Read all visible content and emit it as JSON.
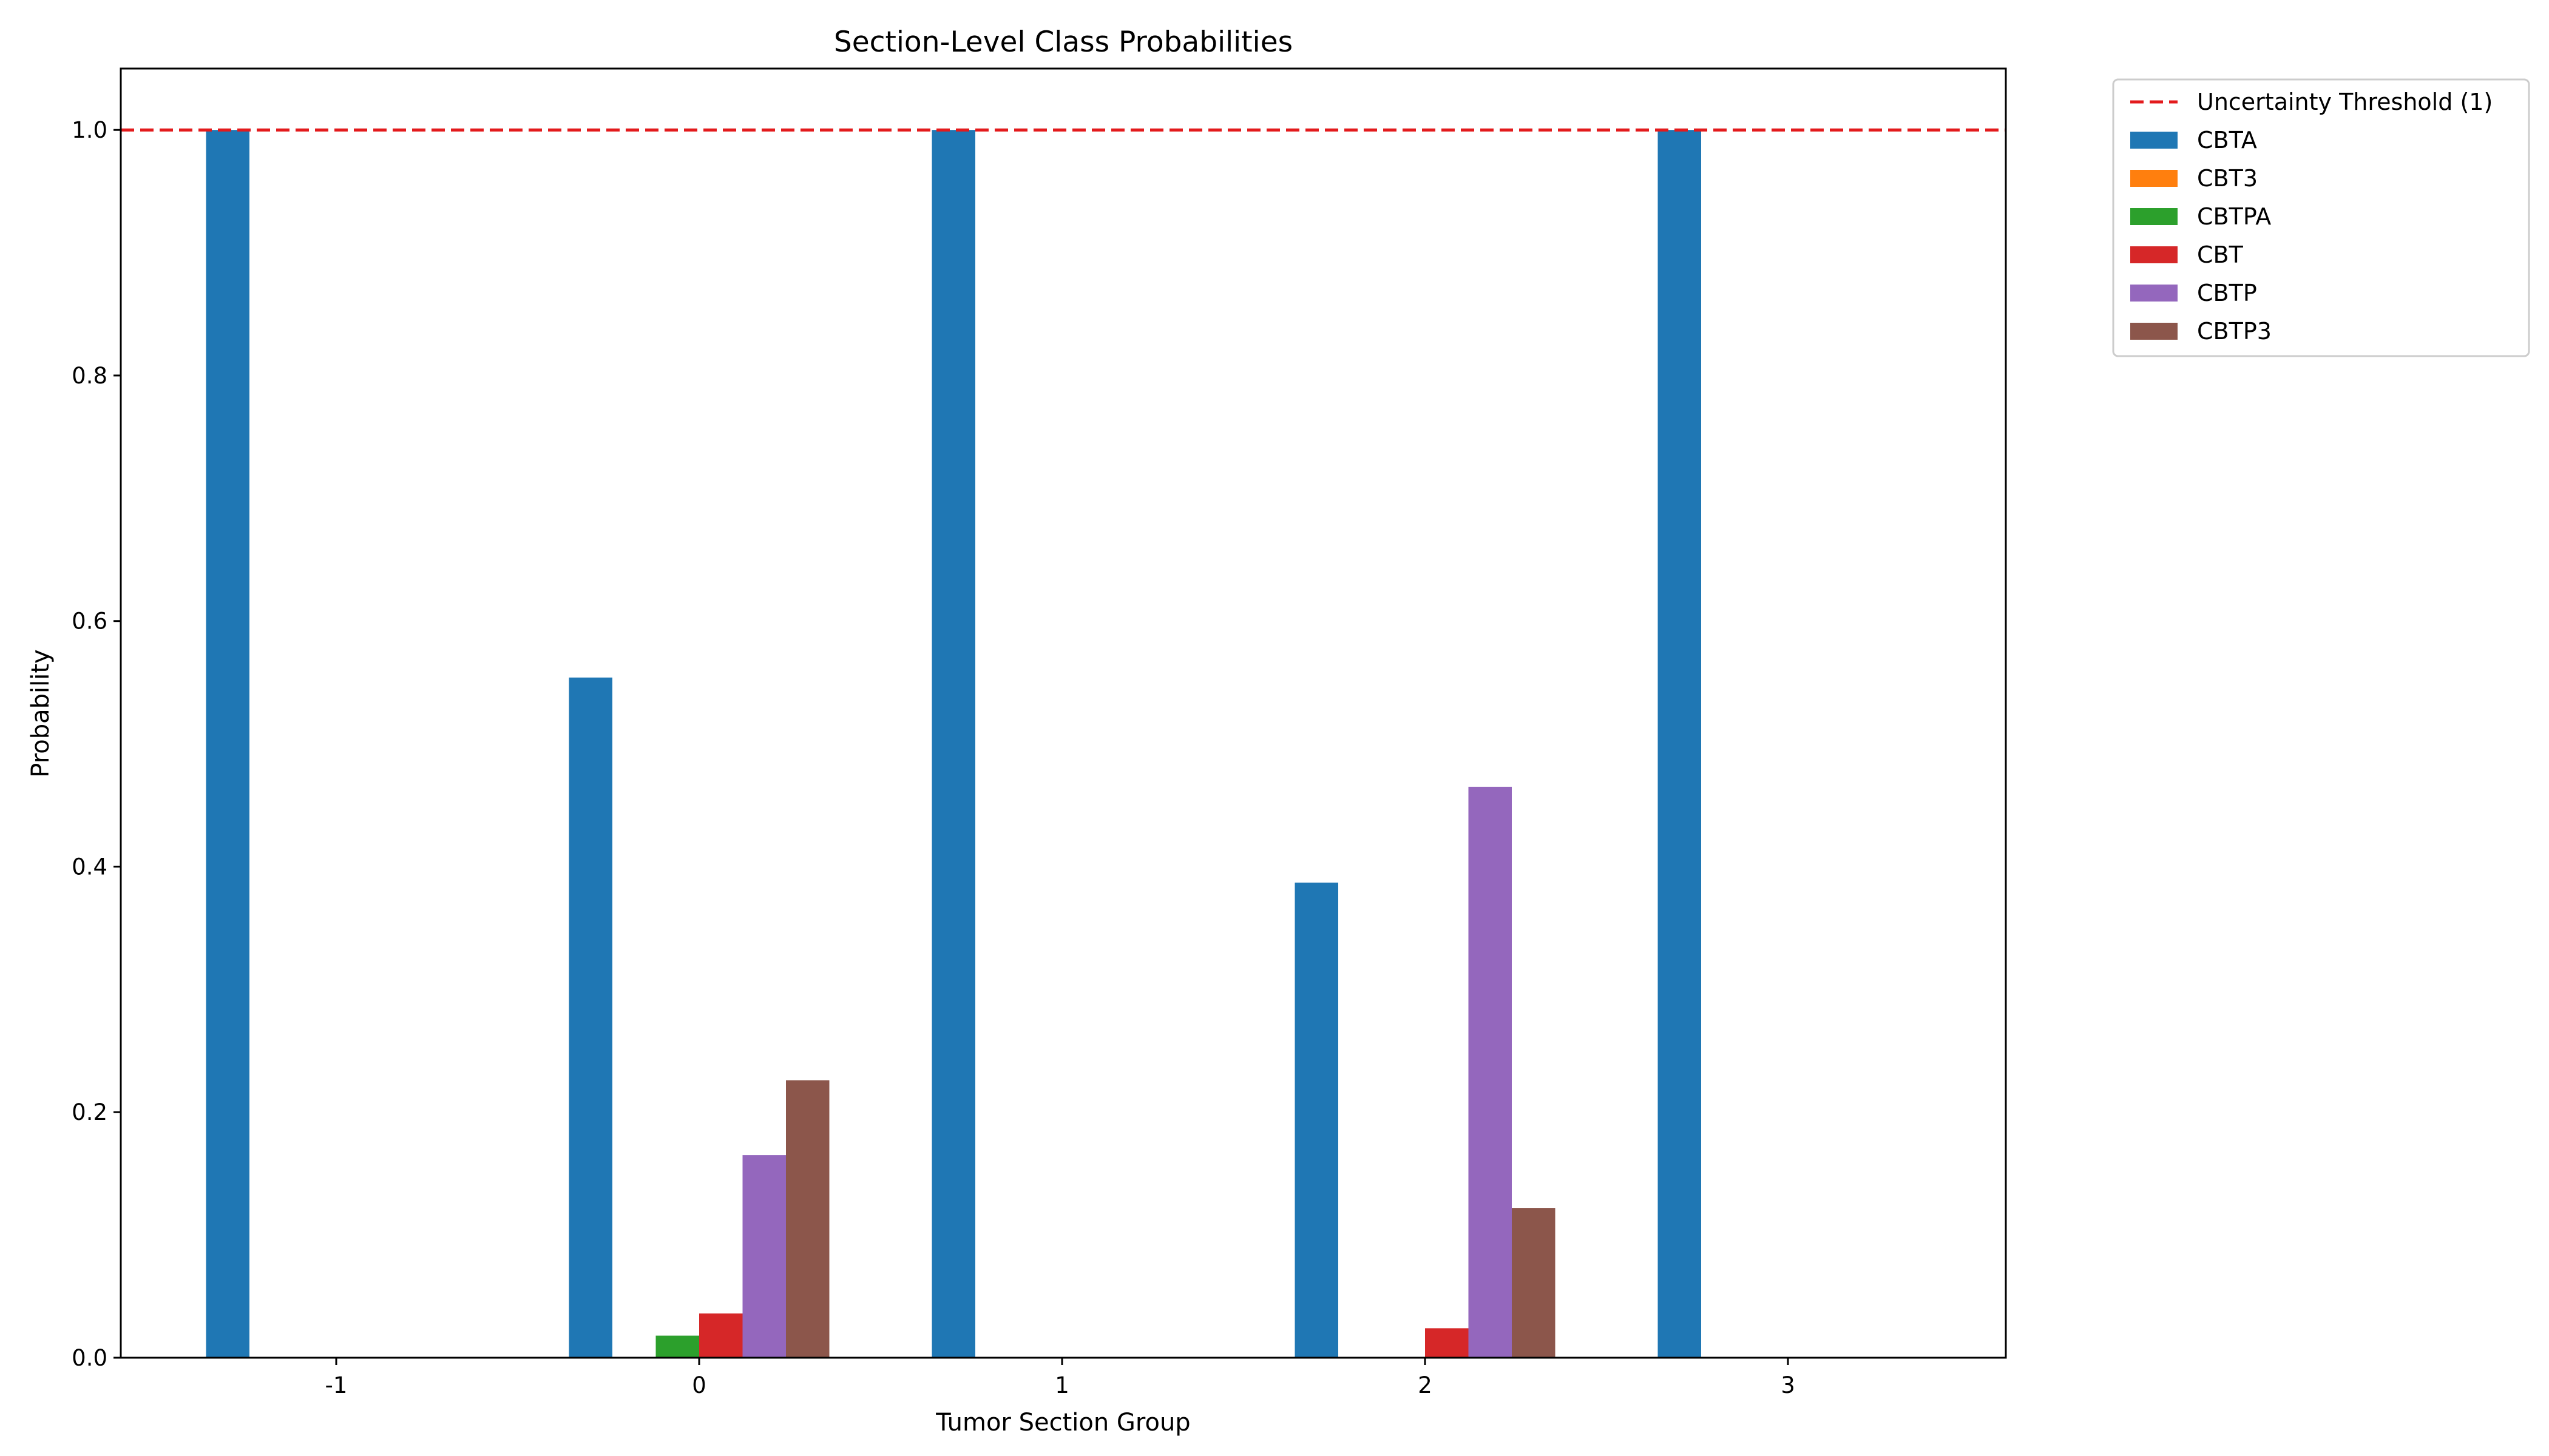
{
  "chart_data": {
    "type": "bar",
    "title": "Section-Level Class Probabilities",
    "xlabel": "Tumor Section Group",
    "ylabel": "Probability",
    "categories": [
      "-1",
      "0",
      "1",
      "2",
      "3"
    ],
    "ylim": [
      0,
      1.05
    ],
    "yticks": [
      "0.0",
      "0.2",
      "0.4",
      "0.6",
      "0.8",
      "1.0"
    ],
    "grid": false,
    "legend_position": "outside-top-right",
    "series": [
      {
        "name": "CBTA",
        "color": "#1f77b4",
        "values": [
          1.0,
          0.554,
          1.0,
          0.387,
          1.0
        ]
      },
      {
        "name": "CBT3",
        "color": "#ff7f0e",
        "values": [
          0,
          0,
          0,
          0,
          0
        ]
      },
      {
        "name": "CBTPA",
        "color": "#2ca02c",
        "values": [
          0,
          0.018,
          0,
          0,
          0
        ]
      },
      {
        "name": "CBT",
        "color": "#d62728",
        "values": [
          0,
          0.036,
          0,
          0.024,
          0
        ]
      },
      {
        "name": "CBTP",
        "color": "#9467bd",
        "values": [
          0,
          0.165,
          0,
          0.465,
          0
        ]
      },
      {
        "name": "CBTP3",
        "color": "#8c564b",
        "values": [
          0,
          0.226,
          0,
          0.122,
          0
        ]
      }
    ],
    "threshold": {
      "label": "Uncertainty Threshold (1)",
      "value": 1.0,
      "color": "#e31a1c",
      "style": "dashed"
    }
  }
}
